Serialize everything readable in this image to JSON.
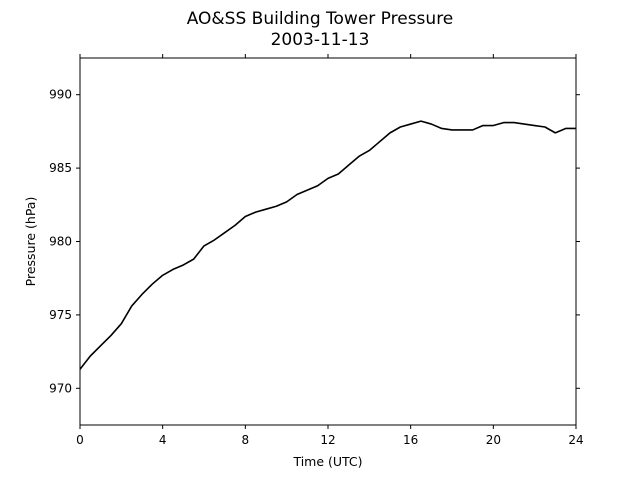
{
  "chart_data": {
    "type": "line",
    "title": "AO&SS Building Tower Pressure",
    "subtitle": "2003-11-13",
    "xlabel": "Time (UTC)",
    "ylabel": "Pressure (hPa)",
    "xlim": [
      0,
      24
    ],
    "ylim": [
      967.5,
      992.5
    ],
    "xticks": [
      0,
      4,
      8,
      12,
      16,
      20,
      24
    ],
    "yticks": [
      970,
      975,
      980,
      985,
      990
    ],
    "grid": false,
    "line_color": "#000000",
    "series": [
      {
        "x": [
          0,
          0.5,
          1,
          1.5,
          2,
          2.5,
          3,
          3.5,
          4,
          4.5,
          5,
          5.5,
          6,
          6.5,
          7,
          7.5,
          8,
          8.5,
          9,
          9.5,
          10,
          10.5,
          11,
          11.5,
          12,
          12.5,
          13,
          13.5,
          14,
          14.5,
          15,
          15.5,
          16,
          16.5,
          17,
          17.5,
          18,
          18.5,
          19,
          19.5,
          20,
          20.5,
          21,
          21.5,
          22,
          22.5,
          23,
          23.5,
          24
        ],
        "y": [
          971.3,
          972.2,
          972.9,
          973.6,
          974.4,
          975.6,
          976.4,
          977.1,
          977.7,
          978.1,
          978.4,
          978.8,
          979.7,
          980.1,
          980.6,
          981.1,
          981.7,
          982.0,
          982.2,
          982.4,
          982.7,
          983.2,
          983.5,
          983.8,
          984.3,
          984.6,
          985.2,
          985.8,
          986.2,
          986.8,
          987.4,
          987.8,
          988.0,
          988.2,
          988.0,
          987.7,
          987.6,
          987.6,
          987.6,
          987.9,
          987.9,
          988.1,
          988.1,
          988.0,
          987.9,
          987.8,
          987.4,
          987.7,
          987.7
        ]
      }
    ]
  }
}
